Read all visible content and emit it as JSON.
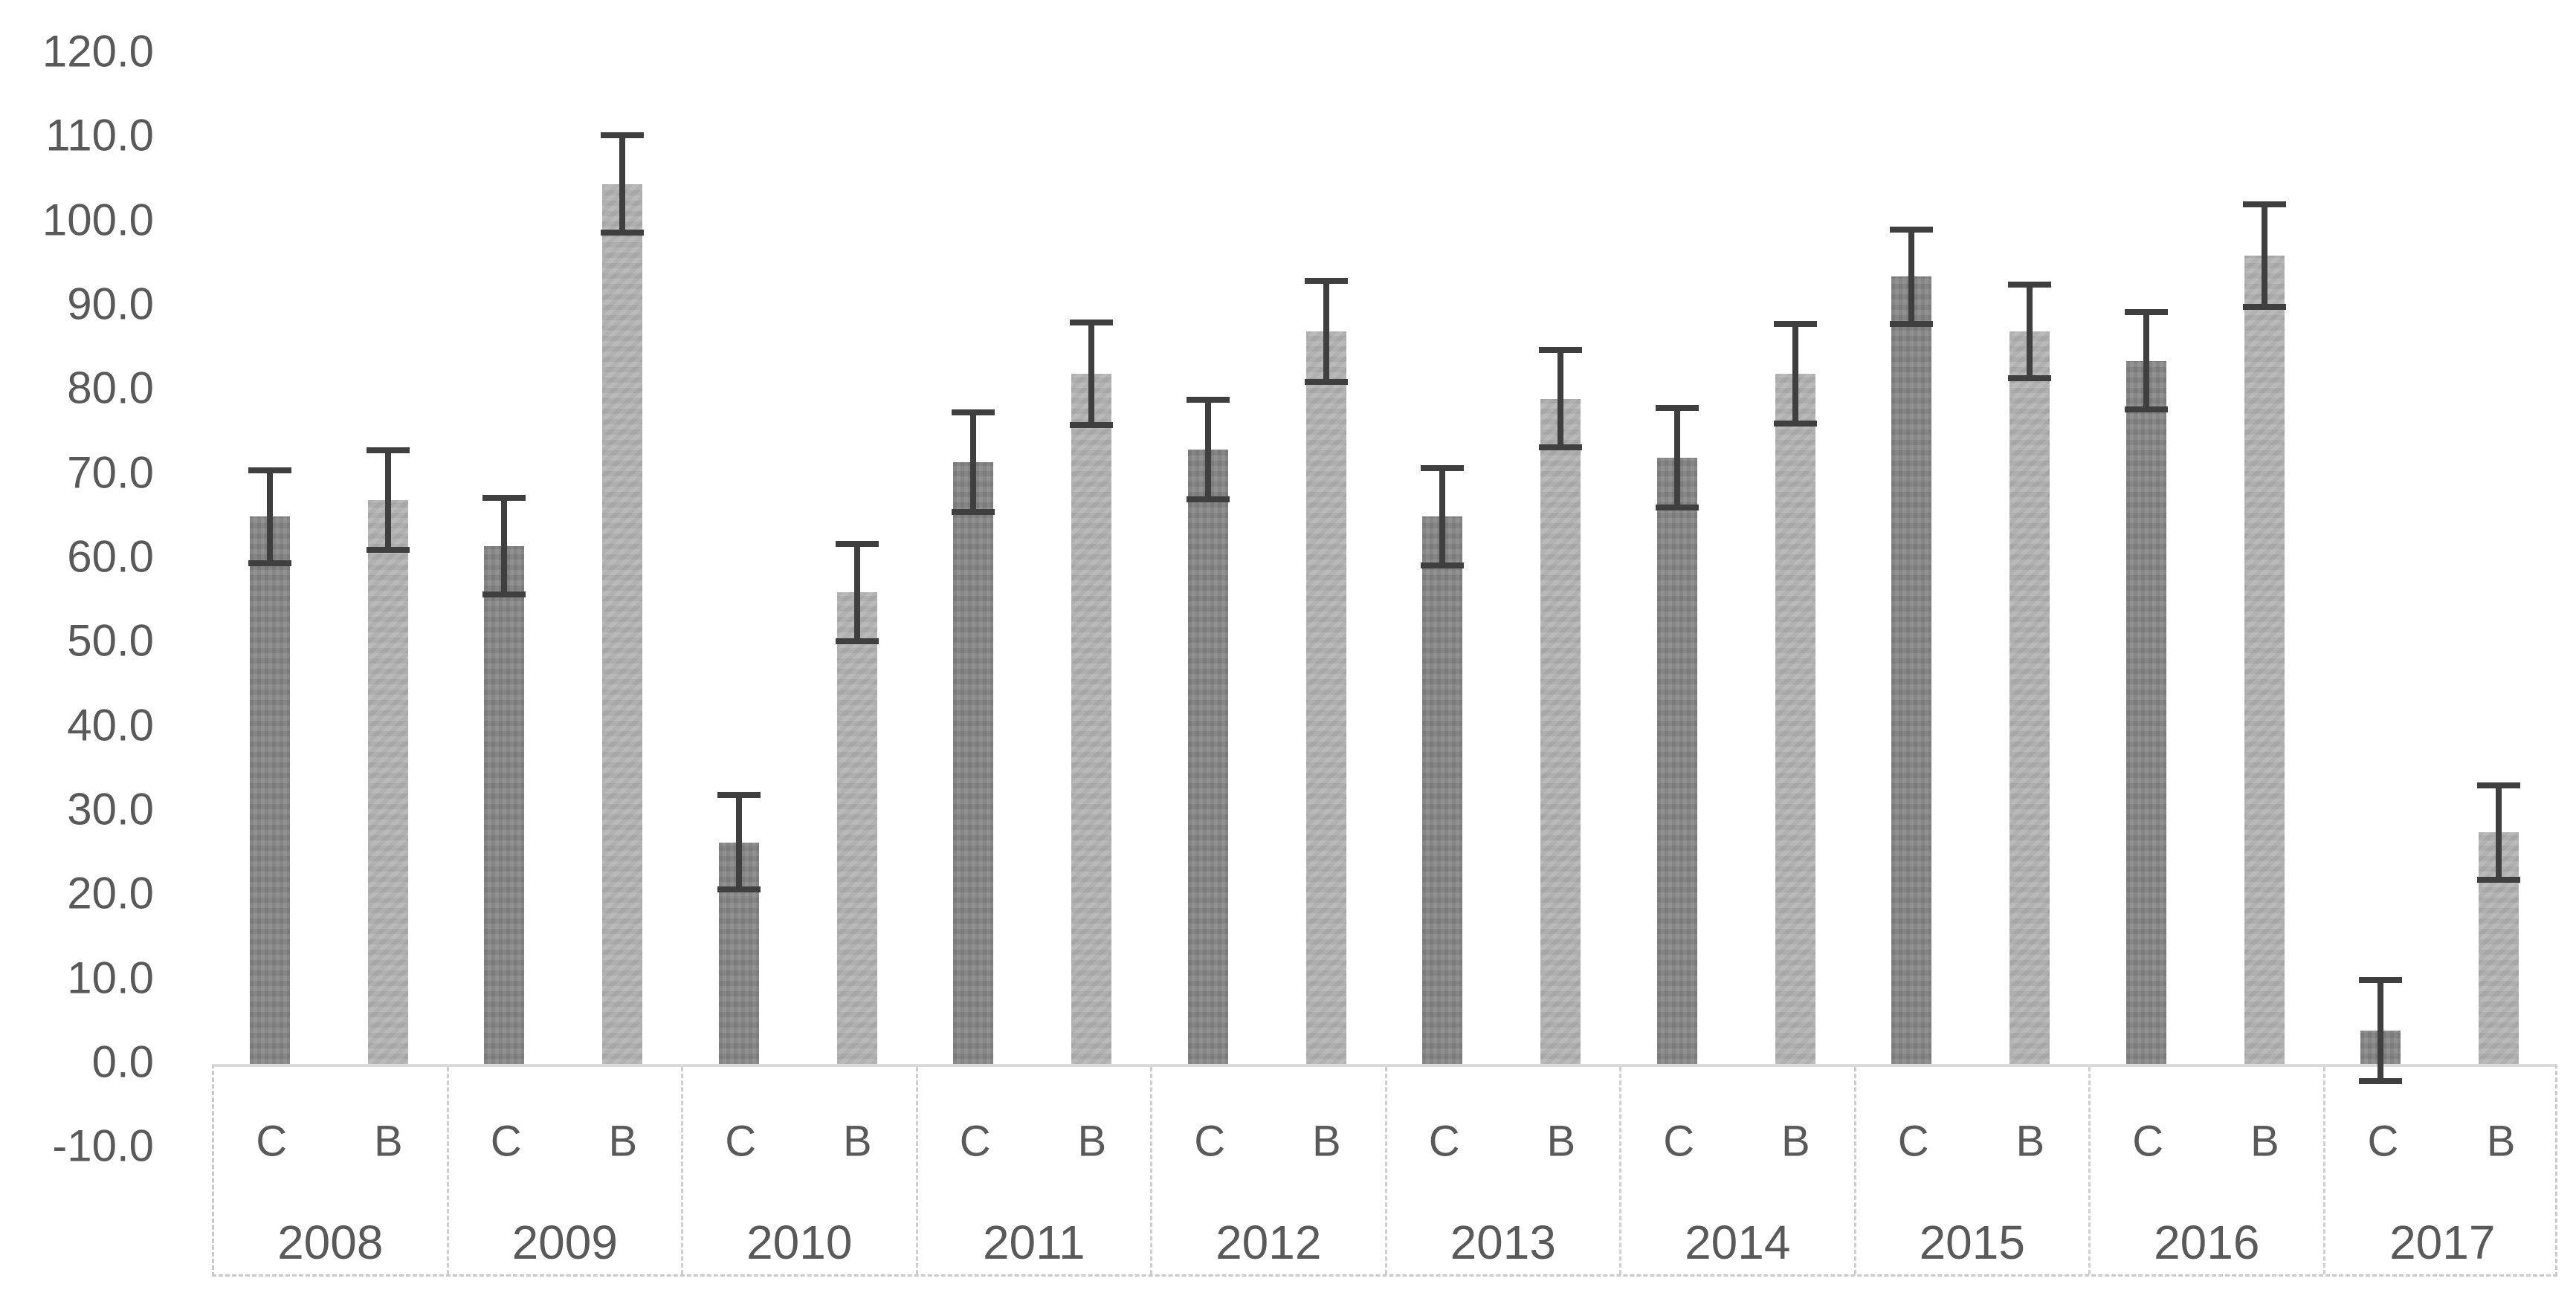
{
  "chart_data": {
    "type": "bar",
    "title": "",
    "xlabel": "",
    "ylabel": "",
    "categories": [
      "2008",
      "2009",
      "2010",
      "2011",
      "2012",
      "2013",
      "2014",
      "2015",
      "2016",
      "2017"
    ],
    "series": [
      {
        "name": "C",
        "values": [
          65.0,
          61.5,
          26.3,
          71.5,
          73.0,
          65.0,
          72.0,
          93.5,
          83.5,
          4.0
        ],
        "errors": [
          5.5,
          5.7,
          5.6,
          5.9,
          5.9,
          5.8,
          5.9,
          5.6,
          5.8,
          6.0
        ]
      },
      {
        "name": "B",
        "values": [
          67.0,
          104.5,
          56.0,
          82.0,
          87.0,
          79.0,
          82.0,
          87.0,
          96.0,
          27.5
        ],
        "errors": [
          5.9,
          5.8,
          5.8,
          6.1,
          6.0,
          5.8,
          5.9,
          5.6,
          6.1,
          5.6
        ]
      }
    ],
    "error_bars": true,
    "ylim": [
      -10,
      120
    ],
    "ytick_step": 10,
    "yticks": [
      {
        "label": "120.0",
        "value": 120
      },
      {
        "label": "110.0",
        "value": 110
      },
      {
        "label": "100.0",
        "value": 100
      },
      {
        "label": "90.0",
        "value": 90
      },
      {
        "label": "80.0",
        "value": 80
      },
      {
        "label": "70.0",
        "value": 70
      },
      {
        "label": "60.0",
        "value": 60
      },
      {
        "label": "50.0",
        "value": 50
      },
      {
        "label": "40.0",
        "value": 40
      },
      {
        "label": "30.0",
        "value": 30
      },
      {
        "label": "20.0",
        "value": 20
      },
      {
        "label": "10.0",
        "value": 10
      },
      {
        "label": "0.0",
        "value": 0
      },
      {
        "label": "-10.0",
        "value": -10
      }
    ],
    "grid": false,
    "legend_position": "none",
    "colors": {
      "series_c_fill": "#8a8a8a",
      "series_b_fill": "#b5b5b5",
      "error_bar": "#3f3f3f",
      "axis_text": "#595959",
      "band_border": "#c9c9c9",
      "baseline": "#dadada"
    }
  }
}
